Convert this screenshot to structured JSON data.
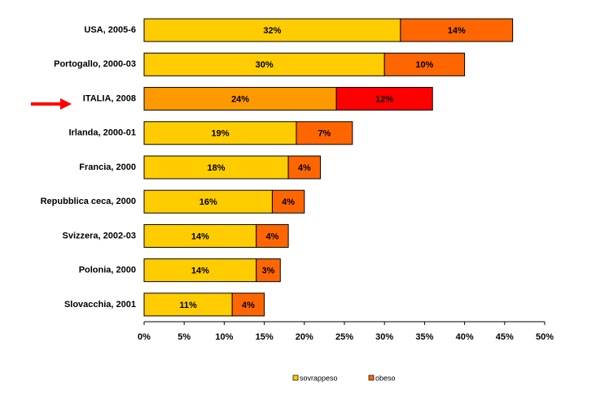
{
  "chart_data": {
    "type": "stacked-barh",
    "categories": [
      "USA, 2005-6",
      "Portogallo, 2000-03",
      "ITALIA, 2008",
      "Irlanda, 2000-01",
      "Francia, 2000",
      "Repubblica ceca, 2000",
      "Svizzera, 2002-03",
      "Polonia, 2000",
      "Slovacchia, 2001"
    ],
    "series": [
      {
        "name": "sovrappeso",
        "color": "#ffcc00",
        "point_colors": [
          "#ffcc00",
          "#ffcc00",
          "#ff9900",
          "#ffcc00",
          "#ffcc00",
          "#ffcc00",
          "#ffcc00",
          "#ffcc00",
          "#ffcc00"
        ],
        "values": [
          32,
          30,
          24,
          19,
          18,
          16,
          14,
          14,
          11
        ],
        "value_labels": [
          "32%",
          "30%",
          "24%",
          "19%",
          "18%",
          "16%",
          "14%",
          "14%",
          "11%"
        ]
      },
      {
        "name": "obeso",
        "color": "#ff6600",
        "point_colors": [
          "#ff6600",
          "#ff6600",
          "#ff0000",
          "#ff6600",
          "#ff6600",
          "#ff6600",
          "#ff6600",
          "#ff6600",
          "#ff6600"
        ],
        "values": [
          14,
          10,
          12,
          7,
          4,
          4,
          4,
          3,
          4
        ],
        "value_labels": [
          "14%",
          "10%",
          "12%",
          "7%",
          "4%",
          "4%",
          "4%",
          "3%",
          "4%"
        ]
      }
    ],
    "xlim": [
      0,
      50
    ],
    "xticks": [
      {
        "value": 0,
        "label": "0%"
      },
      {
        "value": 5,
        "label": "5%"
      },
      {
        "value": 10,
        "label": "10%"
      },
      {
        "value": 15,
        "label": "15%"
      },
      {
        "value": 20,
        "label": "20%"
      },
      {
        "value": 25,
        "label": "25%"
      },
      {
        "value": 30,
        "label": "30%"
      },
      {
        "value": 35,
        "label": "35%"
      },
      {
        "value": 40,
        "label": "40%"
      },
      {
        "value": 45,
        "label": "45%"
      },
      {
        "value": 50,
        "label": "50%"
      }
    ],
    "legend": "bottom"
  }
}
